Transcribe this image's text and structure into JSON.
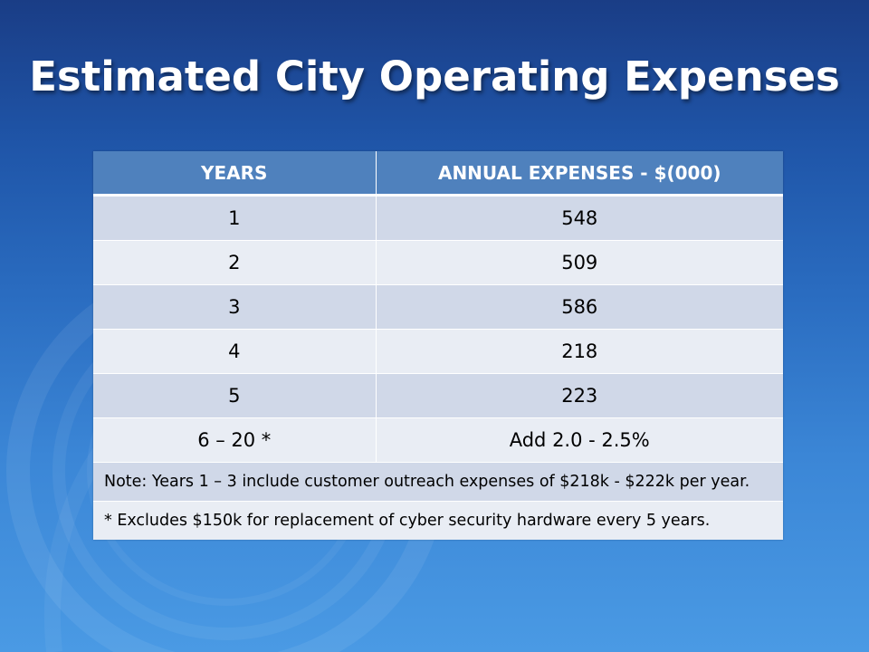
{
  "slide": {
    "title": "Estimated City Operating Expenses"
  },
  "table": {
    "headers": [
      "YEARS",
      "ANNUAL EXPENSES - $(000)"
    ],
    "rows": [
      {
        "years": "1",
        "expenses": "548"
      },
      {
        "years": "2",
        "expenses": "509"
      },
      {
        "years": "3",
        "expenses": "586"
      },
      {
        "years": "4",
        "expenses": "218"
      },
      {
        "years": "5",
        "expenses": "223"
      },
      {
        "years": "6 – 20 *",
        "expenses": "Add 2.0 - 2.5%"
      }
    ],
    "notes": [
      "Note:  Years 1 – 3 include customer outreach expenses of $218k - $222k per year.",
      "* Excludes $150k for replacement of cyber security hardware every 5 years."
    ]
  },
  "colors": {
    "background_top": "#1a3d86",
    "background_bottom": "#4a9ae4",
    "header_fill": "#4f81bd",
    "row_band_dark": "#d0d8e8",
    "row_band_light": "#e9edf4"
  }
}
